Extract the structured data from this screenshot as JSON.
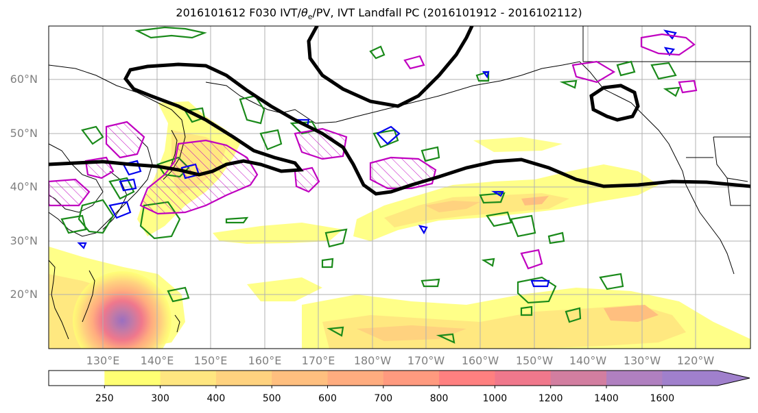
{
  "title": "2016101612 F030 IVT/θe/PV, IVT Landfall PC (2016101912 - 2016102112)",
  "title_parts": {
    "prefix": "2016101612 F030 IVT/",
    "theta": "θ",
    "sub": "e",
    "suffix": "/PV, IVT Landfall PC (2016101912 - 2016102112)"
  },
  "lat_labels": [
    "60°N",
    "50°N",
    "40°N",
    "30°N",
    "20°N"
  ],
  "lon_labels": [
    "130°E",
    "140°E",
    "150°E",
    "160°E",
    "170°E",
    "180°W",
    "170°W",
    "160°W",
    "150°W",
    "140°W",
    "130°W",
    "120°W"
  ],
  "colorbar": {
    "labels": [
      "250",
      "300",
      "400",
      "500",
      "600",
      "700",
      "800",
      "1000",
      "1200",
      "1400",
      "1600"
    ],
    "colors": [
      "#ffffff",
      "#ffff73",
      "#ffe680",
      "#ffd27f",
      "#ffbf7f",
      "#ffac7f",
      "#ff9a7f",
      "#ff8080",
      "#f0788c",
      "#d27ea0",
      "#b080c0",
      "#a080cc"
    ]
  },
  "layers": {
    "ivt_fill_color": "#ffe84d",
    "theta_e_color": "#1a8a1a",
    "pv_color": "#0000ee",
    "landfall_pc_color": "#c000c0",
    "jet_contour_color": "#000000"
  }
}
